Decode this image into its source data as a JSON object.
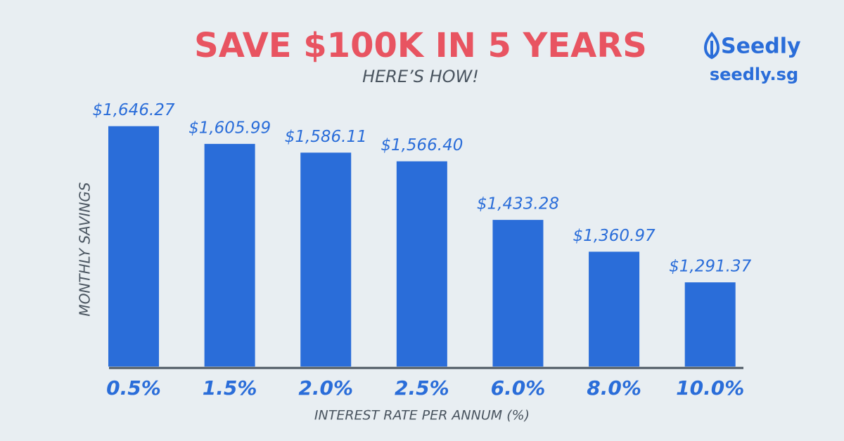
{
  "chart_data": {
    "type": "bar",
    "title": "SAVE $100K IN 5 YEARS",
    "subtitle": "HERE’S HOW!",
    "x_label": "INTEREST RATE PER ANNUM (%)",
    "y_label": "MONTHLY SAVINGS",
    "categories": [
      "0.5%",
      "1.5%",
      "2.0%",
      "2.5%",
      "6.0%",
      "8.0%",
      "10.0%"
    ],
    "values": [
      1646.27,
      1605.99,
      1586.11,
      1566.4,
      1433.28,
      1360.97,
      1291.37
    ],
    "value_labels": [
      "$1,646.27",
      "$1,605.99",
      "$1,586.11",
      "$1,566.40",
      "$1,433.28",
      "$1,360.97",
      "$1,291.37"
    ],
    "color": "#2a6dd9",
    "ylim": [
      1100,
      1700
    ]
  },
  "brand": {
    "name": "Seedly",
    "url": "seedly.sg"
  }
}
